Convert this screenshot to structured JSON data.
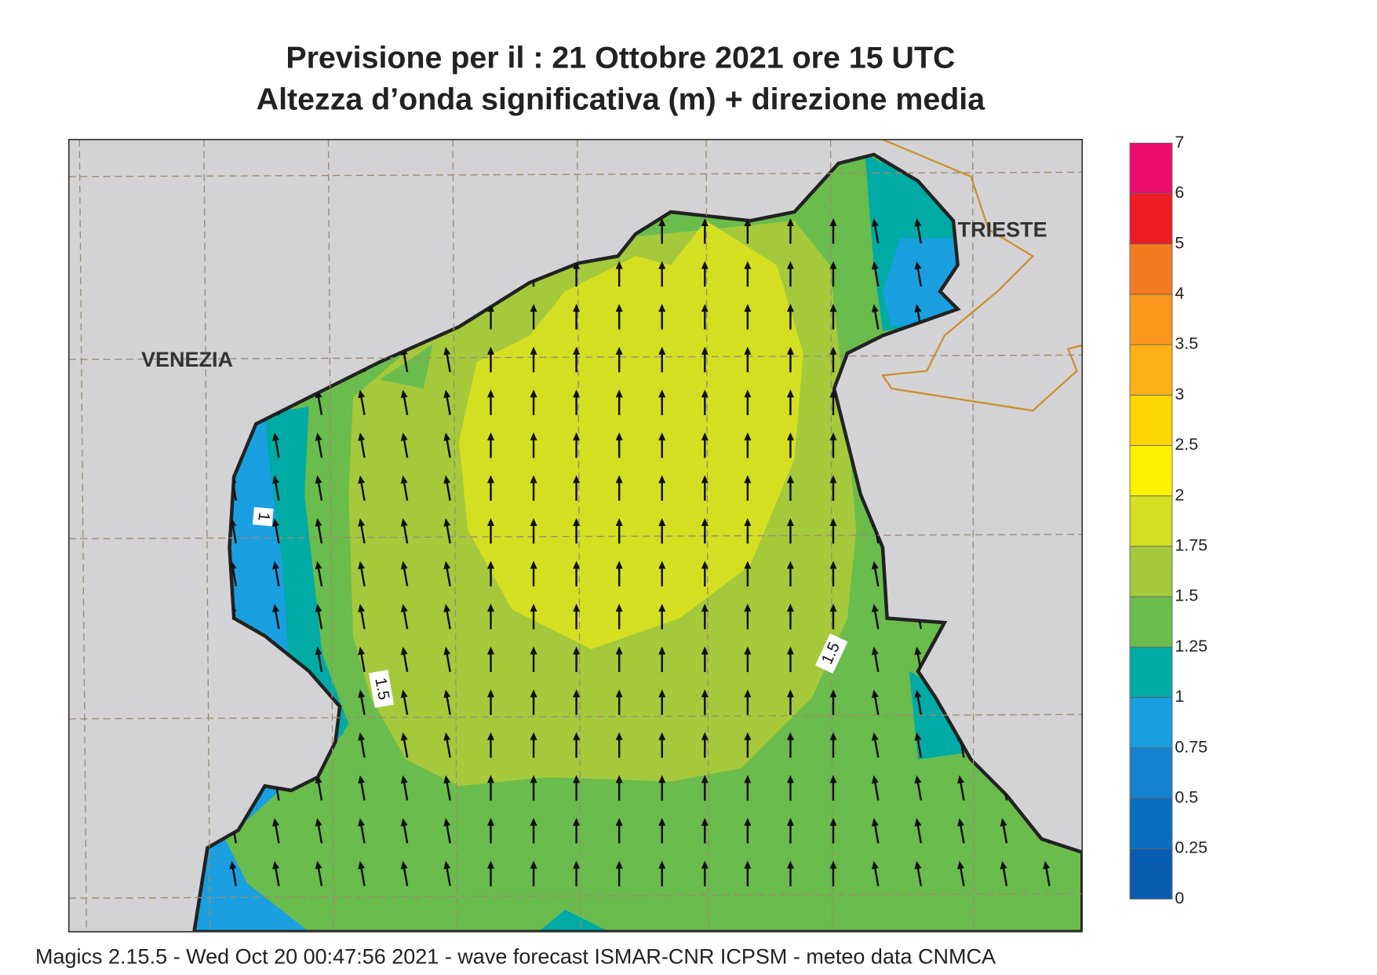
{
  "header": {
    "title": "Previsione per il  :  21  Ottobre  2021   ore 15 UTC",
    "subtitle": "Altezza d’onda significativa (m) + direzione media"
  },
  "map": {
    "places": [
      "VENEZIA",
      "TRIESTE"
    ],
    "contour_labels": [
      "1",
      "1.5",
      "1.5"
    ]
  },
  "colorbar": {
    "ticks": [
      0,
      0.25,
      0.5,
      0.75,
      1,
      1.25,
      1.5,
      1.75,
      2,
      2.5,
      3,
      3.5,
      4,
      5,
      6,
      7
    ],
    "colors": [
      "#0a5cb0",
      "#0a6ec0",
      "#1582cf",
      "#1a9fe0",
      "#00aaa5",
      "#6abc4d",
      "#a5c93b",
      "#d5df22",
      "#fff200",
      "#fdd500",
      "#fbb117",
      "#f9981d",
      "#f47920",
      "#ee1c24",
      "#ec0c6c"
    ]
  },
  "footer": "Magics 2.15.5 - Wed Oct 20 00:47:56 2021 - wave forecast  ISMAR-CNR  ICPSM - meteo data   CNMCA"
}
